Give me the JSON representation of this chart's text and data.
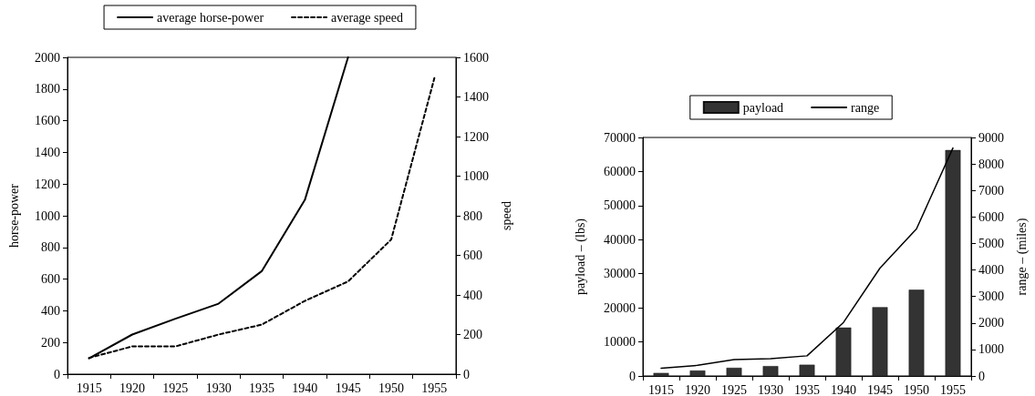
{
  "chart_data": [
    {
      "type": "line",
      "categories": [
        "1915",
        "1920",
        "1925",
        "1930",
        "1935",
        "1940",
        "1945",
        "1950",
        "1955"
      ],
      "ylabel": "horse-power",
      "y2label": "speed",
      "ylim": [
        0,
        2000
      ],
      "yticks": [
        0,
        200,
        400,
        600,
        800,
        1000,
        1200,
        1400,
        1600,
        1800,
        2000
      ],
      "y2lim": [
        0,
        1600
      ],
      "y2ticks": [
        0,
        200,
        400,
        600,
        800,
        1000,
        1200,
        1400,
        1600
      ],
      "legend": "top",
      "grid": false,
      "marker": "none",
      "series": [
        {
          "name": "average horse-power",
          "color": "#000000",
          "line_style": "solid",
          "values": [
            100,
            250,
            350,
            445,
            650,
            1100,
            2000,
            null,
            null
          ]
        },
        {
          "name": "average speed",
          "color": "#000000",
          "line_style": "dashed",
          "axis": "y2",
          "values": [
            82,
            140,
            140,
            200,
            250,
            370,
            468,
            680,
            1495
          ]
        }
      ]
    },
    {
      "type": "bar",
      "categories": [
        "1915",
        "1920",
        "1925",
        "1930",
        "1935",
        "1940",
        "1945",
        "1950",
        "1955"
      ],
      "ylabel": "payload – (lbs)",
      "y2label": "range – (miles)",
      "ylim": [
        0,
        70000
      ],
      "yticks": [
        0,
        10000,
        20000,
        30000,
        40000,
        50000,
        60000,
        70000
      ],
      "y2lim": [
        0,
        9000
      ],
      "y2ticks": [
        0,
        1000,
        2000,
        3000,
        4000,
        5000,
        6000,
        7000,
        8000,
        9000
      ],
      "legend": "top",
      "grid": false,
      "series": [
        {
          "name": "payload",
          "color": "#333333",
          "values": [
            900,
            1600,
            2400,
            2900,
            3300,
            14200,
            20200,
            25300,
            66300
          ]
        },
        {
          "name": "range",
          "type": "line",
          "color": "#000000",
          "line_style": "solid",
          "marker": "none",
          "axis": "y2",
          "values": [
            290,
            400,
            620,
            650,
            760,
            2020,
            4070,
            5550,
            8600
          ]
        }
      ]
    }
  ]
}
